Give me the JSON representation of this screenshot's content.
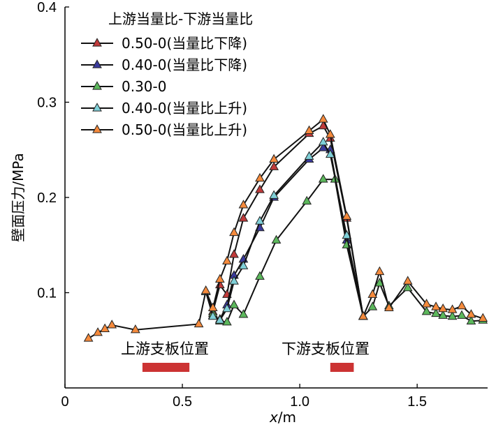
{
  "chart_data": {
    "type": "line",
    "xlabel_var": "x",
    "xlabel_unit": "/m",
    "ylabel": "壁面压力/MPa",
    "xlim": [
      0,
      1.8
    ],
    "ylim": [
      0,
      0.4
    ],
    "xticks": [
      0,
      0.5,
      1.0,
      1.5
    ],
    "xtick_labels": [
      "0",
      "0.5",
      "1.0",
      "1.5"
    ],
    "yticks": [
      0.1,
      0.2,
      0.3,
      0.4
    ],
    "ytick_labels": [
      "0.1",
      "0.2",
      "0.3",
      "0.4"
    ],
    "legend_title": "上游当量比-下游当量比",
    "legend_location": "top-left",
    "annotations": {
      "upstream_label": "上游支板位置",
      "downstream_label": "下游支板位置",
      "upstream_strut": [
        0.33,
        0.53
      ],
      "downstream_strut": [
        1.13,
        1.23
      ],
      "strut_color": "#cc3333"
    },
    "series": [
      {
        "name": "0.50-0(当量比下降)",
        "color": "#c03a3a",
        "x": [
          0.6,
          0.63,
          0.66,
          0.69,
          0.72,
          0.76,
          0.83,
          0.89,
          1.04,
          1.1,
          1.13,
          1.2,
          1.27
        ],
        "y": [
          0.101,
          0.08,
          0.108,
          0.098,
          0.14,
          0.178,
          0.208,
          0.232,
          0.267,
          0.275,
          0.262,
          0.178,
          0.075
        ]
      },
      {
        "name": "0.40-0(当量比下降)",
        "color": "#3a3a9c",
        "x": [
          0.6,
          0.63,
          0.66,
          0.69,
          0.72,
          0.76,
          0.83,
          0.89,
          1.04,
          1.1,
          1.13,
          1.2,
          1.27
        ],
        "y": [
          0.101,
          0.076,
          0.072,
          0.087,
          0.118,
          0.135,
          0.168,
          0.2,
          0.24,
          0.252,
          0.25,
          0.155,
          0.075
        ]
      },
      {
        "name": "0.30-0",
        "color": "#5cb85c",
        "x": [
          0.6,
          0.63,
          0.66,
          0.69,
          0.72,
          0.76,
          0.83,
          0.9,
          1.03,
          1.1,
          1.15,
          1.2,
          1.27,
          1.31,
          1.34,
          1.38,
          1.46,
          1.54,
          1.58,
          1.61,
          1.65,
          1.69,
          1.73,
          1.78
        ],
        "y": [
          0.101,
          0.078,
          0.07,
          0.069,
          0.087,
          0.077,
          0.117,
          0.155,
          0.196,
          0.219,
          0.219,
          0.15,
          0.075,
          0.085,
          0.11,
          0.086,
          0.105,
          0.08,
          0.078,
          0.076,
          0.075,
          0.076,
          0.07,
          0.071
        ]
      },
      {
        "name": "0.40-0(当量比上升)",
        "color": "#7fd0d8",
        "x": [
          0.6,
          0.63,
          0.66,
          0.69,
          0.72,
          0.76,
          0.83,
          0.89,
          1.04,
          1.1,
          1.13,
          1.2,
          1.27
        ],
        "y": [
          0.101,
          0.075,
          0.071,
          0.083,
          0.112,
          0.128,
          0.175,
          0.202,
          0.243,
          0.258,
          0.245,
          0.16,
          0.075
        ]
      },
      {
        "name": "0.50-0(当量比上升)",
        "color": "#f58a3c",
        "x": [
          0.1,
          0.14,
          0.17,
          0.2,
          0.3,
          0.57,
          0.6,
          0.63,
          0.66,
          0.69,
          0.72,
          0.76,
          0.83,
          0.89,
          1.04,
          1.1,
          1.13,
          1.2,
          1.27,
          1.31,
          1.34,
          1.38,
          1.46,
          1.54,
          1.58,
          1.61,
          1.65,
          1.69,
          1.73,
          1.78
        ],
        "y": [
          0.052,
          0.058,
          0.062,
          0.066,
          0.061,
          0.067,
          0.102,
          0.084,
          0.114,
          0.133,
          0.163,
          0.192,
          0.22,
          0.24,
          0.27,
          0.282,
          0.266,
          0.18,
          0.075,
          0.098,
          0.122,
          0.084,
          0.112,
          0.088,
          0.085,
          0.083,
          0.082,
          0.086,
          0.077,
          0.073
        ]
      }
    ]
  }
}
